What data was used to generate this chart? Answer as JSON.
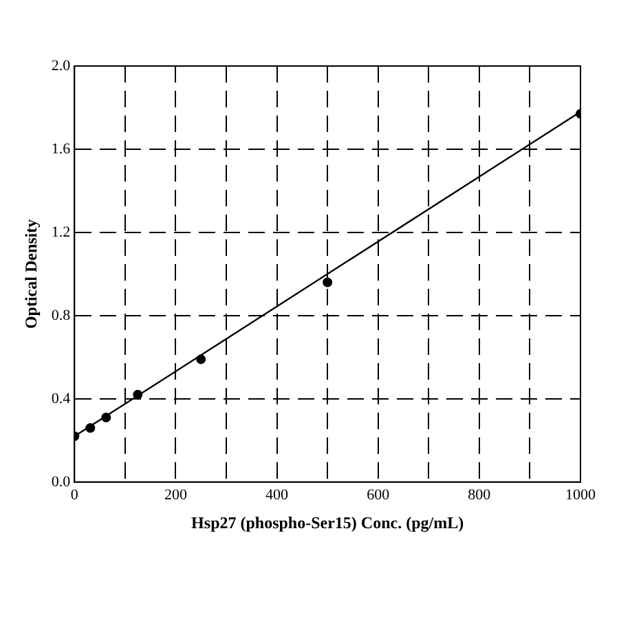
{
  "chart_data": {
    "type": "scatter",
    "xlabel": "Hsp27 (phospho-Ser15) Conc. (pg/mL)",
    "ylabel": "Optical Density",
    "xlim": [
      0,
      1000
    ],
    "ylim": [
      0,
      2.0
    ],
    "xticks": [
      0,
      {
        "value": 100,
        "label": null
      },
      200,
      {
        "value": 300,
        "label": null
      },
      400,
      {
        "value": 500,
        "label": null
      },
      600,
      {
        "value": 700,
        "label": null
      },
      800,
      {
        "value": 900,
        "label": null
      },
      1000
    ],
    "yticks": [
      {
        "value": 0,
        "label": "0.0"
      },
      0.4,
      0.8,
      1.2,
      1.6,
      {
        "value": 2,
        "label": "2.0"
      }
    ],
    "grid": true,
    "marker": "circle",
    "series": [
      {
        "x": [
          0,
          31.25,
          62.5,
          125,
          250,
          500,
          1000
        ],
        "values": [
          0.22,
          0.26,
          0.31,
          0.42,
          0.59,
          0.96,
          1.77
        ],
        "color": "#000000"
      },
      {
        "type": "line",
        "x": [
          0,
          1000
        ],
        "values": [
          0.22,
          1.78
        ],
        "color": "#000000",
        "marker": "none"
      }
    ]
  }
}
